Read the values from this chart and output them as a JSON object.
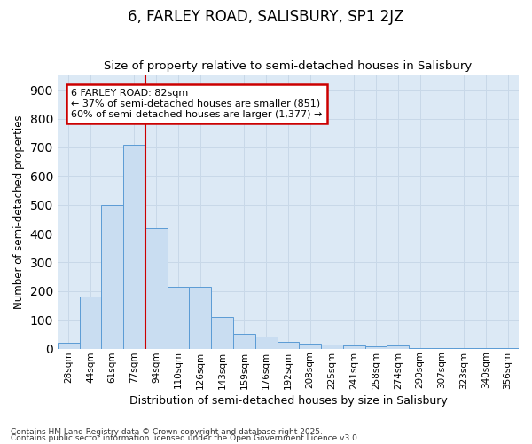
{
  "title": "6, FARLEY ROAD, SALISBURY, SP1 2JZ",
  "subtitle": "Size of property relative to semi-detached houses in Salisbury",
  "xlabel": "Distribution of semi-detached houses by size in Salisbury",
  "ylabel": "Number of semi-detached properties",
  "bar_labels": [
    "28sqm",
    "44sqm",
    "61sqm",
    "77sqm",
    "94sqm",
    "110sqm",
    "126sqm",
    "143sqm",
    "159sqm",
    "176sqm",
    "192sqm",
    "208sqm",
    "225sqm",
    "241sqm",
    "258sqm",
    "274sqm",
    "290sqm",
    "307sqm",
    "323sqm",
    "340sqm",
    "356sqm"
  ],
  "bar_values": [
    20,
    180,
    500,
    710,
    420,
    215,
    215,
    110,
    50,
    42,
    25,
    18,
    15,
    10,
    8,
    10,
    2,
    2,
    1,
    1,
    1
  ],
  "bar_color": "#c9ddf1",
  "bar_edgecolor": "#5b9bd5",
  "vline_x": 3.5,
  "vline_color": "#cc0000",
  "annotation_title": "6 FARLEY ROAD: 82sqm",
  "annotation_line1": "← 37% of semi-detached houses are smaller (851)",
  "annotation_line2": "60% of semi-detached houses are larger (1,377) →",
  "annotation_box_facecolor": "#ffffff",
  "annotation_box_edgecolor": "#cc0000",
  "ylim_max": 950,
  "grid_color": "#c8d8e8",
  "background_color": "#ffffff",
  "plot_bg_color": "#dce9f5",
  "footer1": "Contains HM Land Registry data © Crown copyright and database right 2025.",
  "footer2": "Contains public sector information licensed under the Open Government Licence v3.0."
}
